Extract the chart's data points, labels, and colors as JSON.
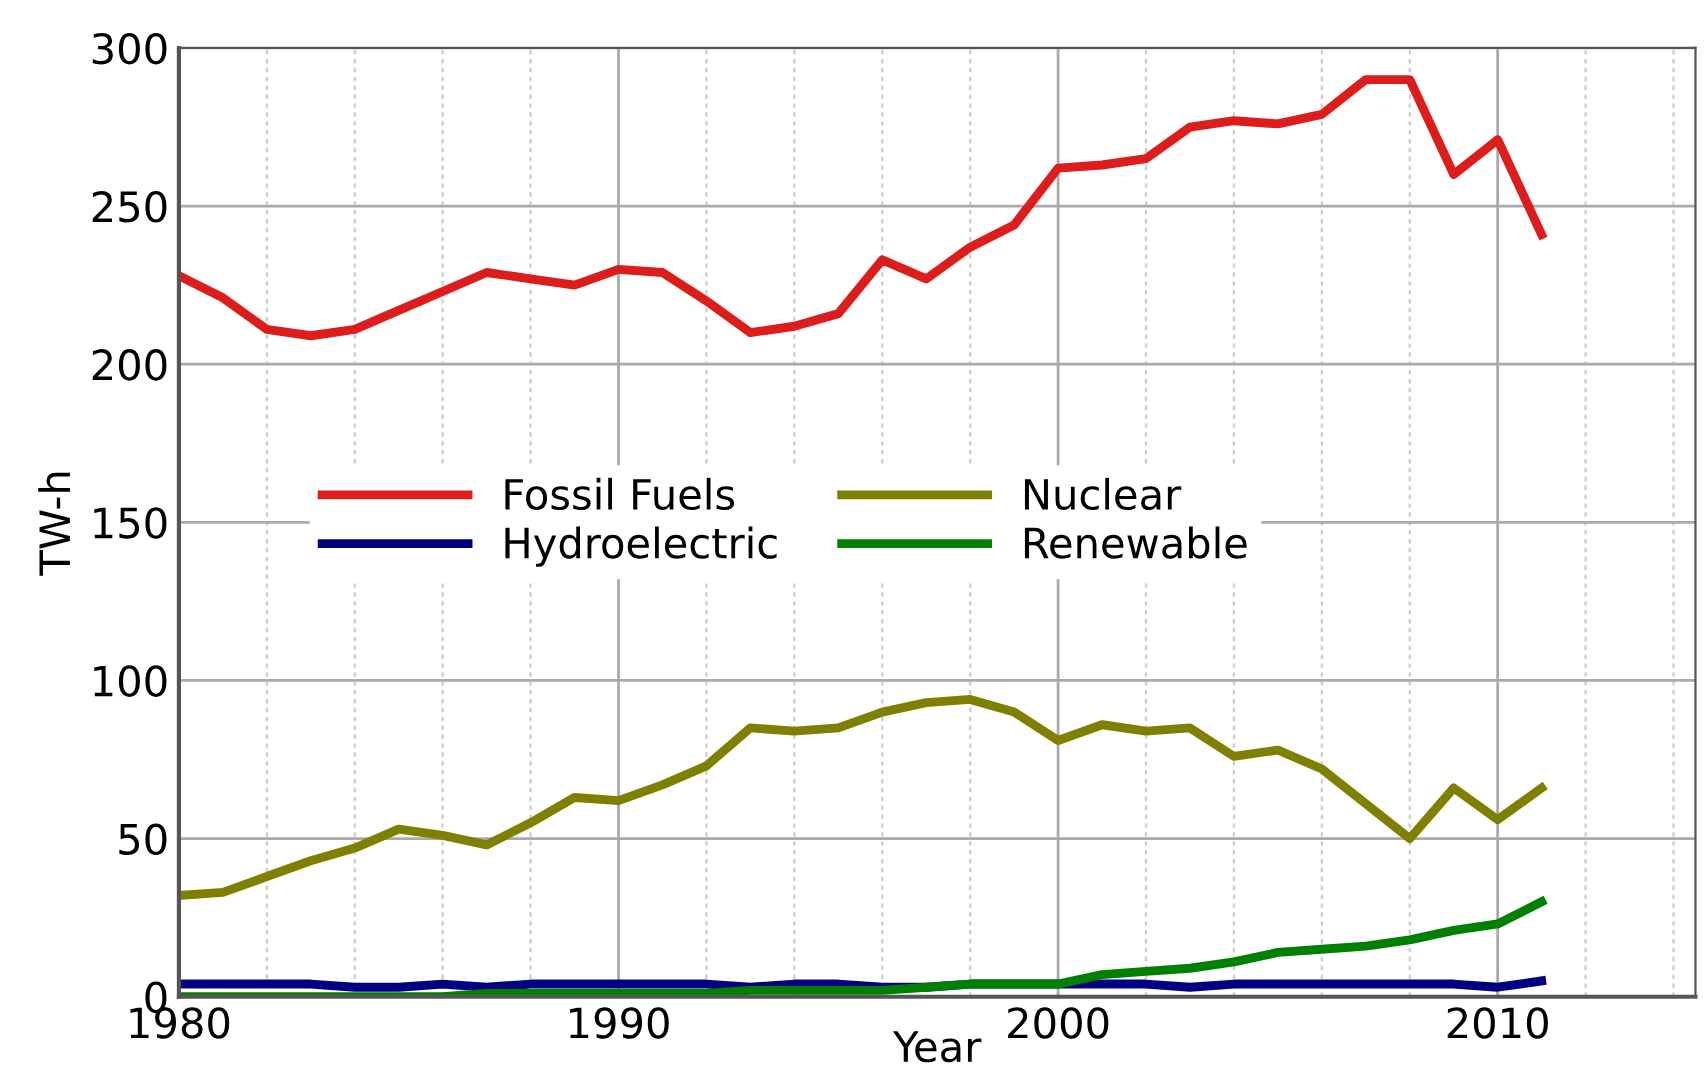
{
  "chart_data": {
    "type": "line",
    "xlabel": "Year",
    "ylabel": "TW-h",
    "x": [
      1980,
      1981,
      1982,
      1983,
      1984,
      1985,
      1986,
      1987,
      1988,
      1989,
      1990,
      1991,
      1992,
      1993,
      1994,
      1995,
      1996,
      1997,
      1998,
      1999,
      2000,
      2001,
      2002,
      2003,
      2004,
      2005,
      2006,
      2007,
      2008,
      2009,
      2010,
      2011
    ],
    "series": [
      {
        "name": "Fossil Fuels",
        "color": "#dd1c1c",
        "values": [
          228,
          221,
          211,
          209,
          211,
          217,
          223,
          229,
          227,
          225,
          230,
          229,
          220,
          210,
          212,
          216,
          233,
          227,
          237,
          244,
          262,
          263,
          265,
          275,
          277,
          276,
          279,
          290,
          290,
          260,
          271,
          241
        ]
      },
      {
        "name": "Hydroelectric",
        "color": "#000080",
        "values": [
          4,
          4,
          4,
          4,
          3,
          3,
          4,
          3,
          4,
          4,
          4,
          4,
          4,
          3,
          4,
          4,
          3,
          3,
          4,
          4,
          4,
          4,
          4,
          3,
          4,
          4,
          4,
          4,
          4,
          4,
          3,
          5
        ]
      },
      {
        "name": "Nuclear",
        "color": "#808000",
        "values": [
          32,
          33,
          38,
          43,
          47,
          53,
          51,
          48,
          55,
          63,
          62,
          67,
          73,
          85,
          84,
          85,
          90,
          93,
          94,
          90,
          81,
          86,
          84,
          85,
          76,
          78,
          72,
          61,
          50,
          66,
          56,
          66
        ]
      },
      {
        "name": "Renewable",
        "color": "#008000",
        "values": [
          0,
          0,
          0,
          0,
          0,
          0,
          0,
          1,
          1,
          1,
          1,
          1,
          1,
          2,
          2,
          2,
          2,
          3,
          4,
          4,
          4,
          7,
          8,
          9,
          11,
          14,
          15,
          16,
          18,
          21,
          23,
          30
        ]
      }
    ],
    "xlim": [
      1980,
      2014.5
    ],
    "ylim": [
      0,
      300
    ],
    "xticks": [
      1980,
      {
        "value": 1982,
        "label": null
      },
      {
        "value": 1984,
        "label": null
      },
      {
        "value": 1986,
        "label": null
      },
      {
        "value": 1988,
        "label": null
      },
      1990,
      {
        "value": 1992,
        "label": null
      },
      {
        "value": 1994,
        "label": null
      },
      {
        "value": 1996,
        "label": null
      },
      {
        "value": 1998,
        "label": null
      },
      2000,
      {
        "value": 2002,
        "label": null
      },
      {
        "value": 2004,
        "label": null
      },
      {
        "value": 2006,
        "label": null
      },
      {
        "value": 2008,
        "label": null
      },
      2010,
      {
        "value": 2012,
        "label": null
      },
      {
        "value": 2014,
        "label": null
      }
    ],
    "yticks": [
      0,
      50,
      100,
      150,
      200,
      250,
      300
    ],
    "grid": true,
    "legend": "center",
    "marker": "none",
    "line_style": "solid"
  }
}
